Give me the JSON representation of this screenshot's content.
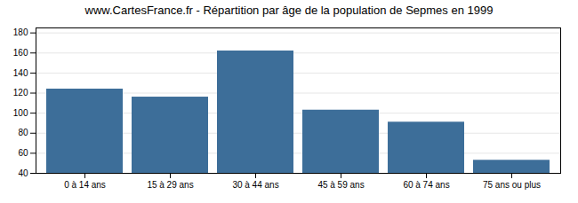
{
  "chart_data": {
    "type": "bar",
    "title": "www.CartesFrance.fr - Répartition par âge de la population de Sepmes en 1999",
    "categories": [
      "0 à 14 ans",
      "15 à 29 ans",
      "30 à 44 ans",
      "45 à 59 ans",
      "60 à 74 ans",
      "75 ans ou plus"
    ],
    "values": [
      124,
      116,
      162,
      103,
      91,
      53
    ],
    "color": "#3d6e99",
    "ylim": [
      40,
      185
    ],
    "yticks": [
      40,
      60,
      80,
      100,
      120,
      140,
      160,
      180
    ],
    "grid": true
  }
}
